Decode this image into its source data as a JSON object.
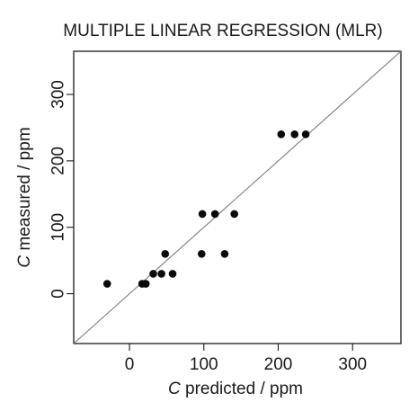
{
  "chart_data": {
    "type": "scatter",
    "title": "MULTIPLE LINEAR REGRESSION (MLR)",
    "xlabel": {
      "symbol": "C",
      "text": " predicted / ppm"
    },
    "ylabel": {
      "symbol": "C",
      "text": " measured / ppm"
    },
    "xlim": [
      -75,
      365
    ],
    "ylim": [
      -75,
      365
    ],
    "x_ticks": [
      0,
      100,
      200,
      300
    ],
    "y_ticks": [
      0,
      100,
      200,
      300
    ],
    "grid": false,
    "legend": "none",
    "reference_line": {
      "type": "identity",
      "slope": 1,
      "intercept": 0,
      "color": "#7a7a7a"
    },
    "point_color": "#0a0a0a",
    "points": [
      {
        "x": -30,
        "y": 15
      },
      {
        "x": 17,
        "y": 15
      },
      {
        "x": 22,
        "y": 15
      },
      {
        "x": 32,
        "y": 30
      },
      {
        "x": 43,
        "y": 30
      },
      {
        "x": 58,
        "y": 30
      },
      {
        "x": 48,
        "y": 60
      },
      {
        "x": 97,
        "y": 60
      },
      {
        "x": 128,
        "y": 60
      },
      {
        "x": 98,
        "y": 120
      },
      {
        "x": 115,
        "y": 120
      },
      {
        "x": 141,
        "y": 120
      },
      {
        "x": 204,
        "y": 240
      },
      {
        "x": 222,
        "y": 240
      },
      {
        "x": 237,
        "y": 240
      }
    ]
  }
}
